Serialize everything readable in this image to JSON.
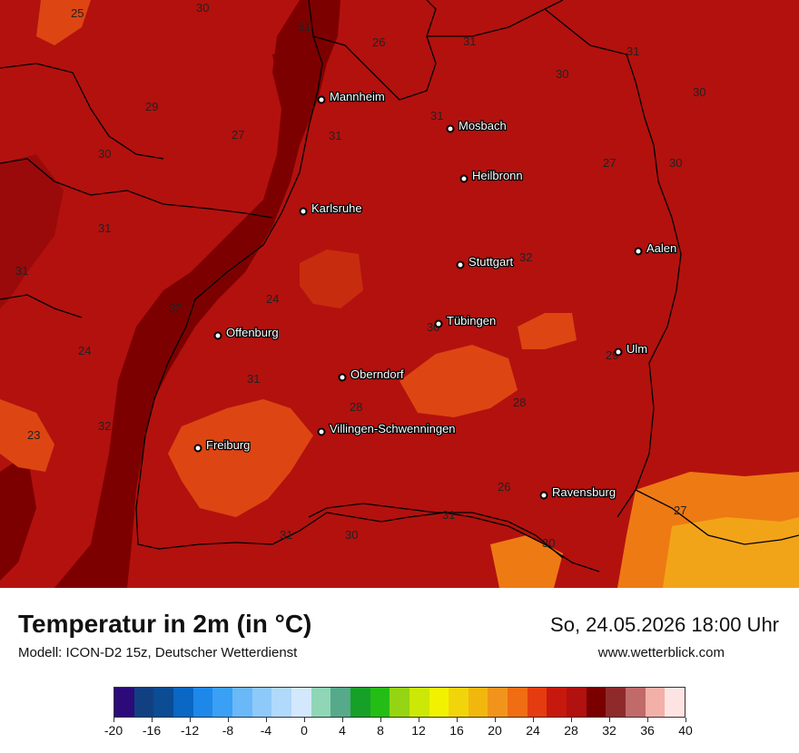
{
  "map": {
    "cities": [
      {
        "name": "Mannheim",
        "key": "mannheim"
      },
      {
        "name": "Mosbach",
        "key": "mosbach"
      },
      {
        "name": "Heilbronn",
        "key": "heilbronn"
      },
      {
        "name": "Karlsruhe",
        "key": "karlsruhe"
      },
      {
        "name": "Aalen",
        "key": "aalen"
      },
      {
        "name": "Stuttgart",
        "key": "stuttgart"
      },
      {
        "name": "Tübingen",
        "key": "tuebingen"
      },
      {
        "name": "Offenburg",
        "key": "offenburg"
      },
      {
        "name": "Ulm",
        "key": "ulm"
      },
      {
        "name": "Oberndorf",
        "key": "oberndorf"
      },
      {
        "name": "Villingen-Schwenningen",
        "key": "villingen"
      },
      {
        "name": "Freiburg",
        "key": "freiburg"
      },
      {
        "name": "Ravensburg",
        "key": "ravensburg"
      }
    ],
    "values": [
      "25",
      "30",
      "31",
      "26",
      "31",
      "31",
      "30",
      "30",
      "27",
      "31",
      "31",
      "30",
      "29",
      "27",
      "30",
      "31",
      "31",
      "32",
      "24",
      "30",
      "24",
      "31",
      "28",
      "29",
      "28",
      "32",
      "23",
      "31",
      "26",
      "27",
      "31",
      "30",
      "30",
      "32"
    ],
    "colors": {
      "ocean_dark": "#7d0000",
      "base": "#b3110e",
      "warm": "#c82c0f",
      "hot": "#dd4613",
      "hotter": "#ee7a14",
      "hottest": "#f2a418",
      "cool_red": "#9a0a0a"
    }
  },
  "footer": {
    "title": "Temperatur in 2m (in °C)",
    "subtitle": "Modell: ICON-D2 15z, Deutscher Wetterdienst",
    "datetime": "So, 24.05.2026 18:00 Uhr",
    "website": "www.wetterblick.com"
  },
  "legend": {
    "colors": [
      "#2d0a7a",
      "#123f82",
      "#0b4c93",
      "#0a67c3",
      "#1e88ea",
      "#3aa0f5",
      "#6bb8f8",
      "#8ec9f9",
      "#b0d9fb",
      "#d3e8fc",
      "#8fd6b7",
      "#56a98a",
      "#17a028",
      "#24bd16",
      "#95d412",
      "#cce806",
      "#f2f200",
      "#f2d40b",
      "#f2b70d",
      "#f2941b",
      "#f06d13",
      "#e43c10",
      "#c7180e",
      "#b1110f",
      "#7a0000",
      "#8f2a2a",
      "#c06a6a",
      "#f2b0a8",
      "#fde4e2"
    ],
    "ticks": [
      "-20",
      "-16",
      "-12",
      "-8",
      "-4",
      "0",
      "4",
      "8",
      "12",
      "16",
      "20",
      "24",
      "28",
      "32",
      "36",
      "40"
    ]
  }
}
